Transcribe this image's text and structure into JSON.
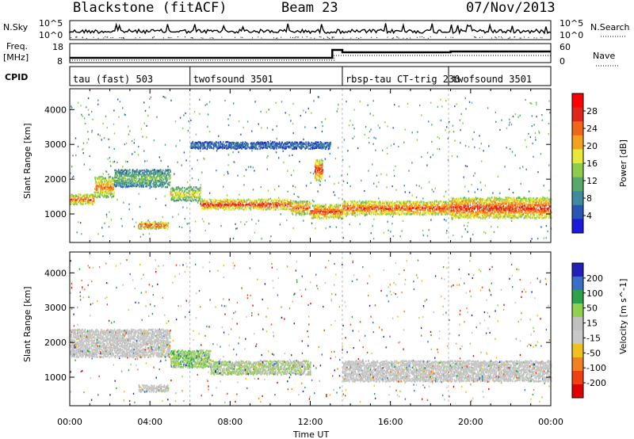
{
  "header": {
    "station": "Blackstone (fitACF)",
    "beam": "Beam 23",
    "date": "07/Nov/2013"
  },
  "top_panels": {
    "left_labels": [
      "N.Sky",
      "Freq.",
      "[MHz]",
      "CPID"
    ],
    "right_labels": [
      "N.Search",
      "Nave"
    ],
    "nsky_ticks": [
      "10^5",
      "10^0"
    ],
    "nsearch_ticks": [
      "10^5",
      "10^0"
    ],
    "freq_ticks": [
      "18",
      "8"
    ],
    "nave_ticks": [
      "60",
      "0"
    ]
  },
  "cpid_segments": [
    {
      "label": "tau (fast) 503",
      "start_hour": 0.0
    },
    {
      "label": "twofsound 3501",
      "start_hour": 6.0
    },
    {
      "label": "rbsp-tau CT-trig 230",
      "start_hour": 13.6
    },
    {
      "label": "twofsound 3501",
      "start_hour": 18.9
    }
  ],
  "colors": {
    "power_scale": [
      "#1a1ad9",
      "#2a56b3",
      "#3f8a9e",
      "#58a86b",
      "#8fcc4c",
      "#e8e838",
      "#f2a21d",
      "#f2661a",
      "#e02618",
      "#ff0000"
    ],
    "velocity_scale": [
      "#2020b8",
      "#3a6fc8",
      "#2ea24a",
      "#90d050",
      "#c0c0c0",
      "#c8c8c8",
      "#f0c020",
      "#f08020",
      "#f04010",
      "#e00000"
    ]
  },
  "chart_data": [
    {
      "type": "heatmap",
      "name": "Power",
      "ylabel": "Slant Range [km]",
      "ylim": [
        180,
        4600
      ],
      "yticks": [
        1000,
        2000,
        3000,
        4000
      ],
      "xlim": [
        0,
        24
      ],
      "xticks": [
        "00:00",
        "04:00",
        "08:00",
        "12:00",
        "16:00",
        "20:00",
        "00:00"
      ],
      "colorbar": {
        "label": "Power [dB]",
        "range": [
          0,
          32
        ],
        "ticks": [
          4,
          8,
          12,
          16,
          20,
          24,
          28
        ]
      },
      "bands": [
        {
          "t0": 0.0,
          "t1": 1.2,
          "r_lo": 1300,
          "r_hi": 1600,
          "db": 28
        },
        {
          "t0": 1.2,
          "t1": 2.2,
          "r_lo": 1500,
          "r_hi": 2100,
          "db": 24
        },
        {
          "t0": 2.2,
          "t1": 5.0,
          "r_lo": 1800,
          "r_hi": 2300,
          "db": 14
        },
        {
          "t0": 5.0,
          "t1": 6.5,
          "r_lo": 1400,
          "r_hi": 1800,
          "db": 20
        },
        {
          "t0": 6.5,
          "t1": 11.0,
          "r_lo": 1150,
          "r_hi": 1450,
          "db": 30
        },
        {
          "t0": 11.0,
          "t1": 12.0,
          "r_lo": 1000,
          "r_hi": 1400,
          "db": 26
        },
        {
          "t0": 12.0,
          "t1": 13.6,
          "r_lo": 900,
          "r_hi": 1300,
          "db": 28
        },
        {
          "t0": 13.6,
          "t1": 19.0,
          "r_lo": 1000,
          "r_hi": 1400,
          "db": 28
        },
        {
          "t0": 19.0,
          "t1": 24.0,
          "r_lo": 900,
          "r_hi": 1500,
          "db": 28
        },
        {
          "t0": 3.4,
          "t1": 4.9,
          "r_lo": 600,
          "r_hi": 800,
          "db": 30
        },
        {
          "t0": 12.2,
          "t1": 12.6,
          "r_lo": 2000,
          "r_hi": 2600,
          "db": 28
        },
        {
          "t0": 6.0,
          "t1": 13.0,
          "r_lo": 2900,
          "r_hi": 3100,
          "db": 8
        }
      ]
    },
    {
      "type": "heatmap",
      "name": "Velocity",
      "ylabel": "Slant Range [km]",
      "ylim": [
        180,
        4600
      ],
      "yticks": [
        1000,
        2000,
        3000,
        4000
      ],
      "xlim": [
        0,
        24
      ],
      "xlabel": "Time UT",
      "xticks": [
        "00:00",
        "04:00",
        "08:00",
        "12:00",
        "16:00",
        "20:00",
        "00:00"
      ],
      "colorbar": {
        "label": "Velocity [m s^-1]",
        "ticks": [
          "200",
          "100",
          "50",
          "15",
          "-15",
          "-50",
          "-100",
          "-200"
        ]
      },
      "bands": [
        {
          "t0": 0.0,
          "t1": 5.0,
          "r_lo": 1600,
          "r_hi": 2400,
          "v": 0
        },
        {
          "t0": 3.4,
          "t1": 4.9,
          "r_lo": 600,
          "r_hi": 800,
          "v": 0
        },
        {
          "t0": 5.0,
          "t1": 7.0,
          "r_lo": 1300,
          "r_hi": 1800,
          "v": 60
        },
        {
          "t0": 7.0,
          "t1": 12.0,
          "r_lo": 1100,
          "r_hi": 1500,
          "v": 40
        },
        {
          "t0": 13.6,
          "t1": 24.0,
          "r_lo": 900,
          "r_hi": 1500,
          "v": 0
        }
      ]
    }
  ]
}
